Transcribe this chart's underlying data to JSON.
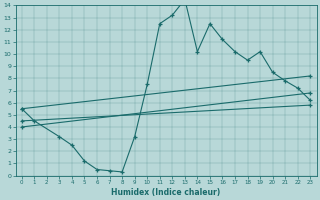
{
  "xlabel": "Humidex (Indice chaleur)",
  "bg_color": "#b8d8d8",
  "line_color": "#1a6b6b",
  "xlim": [
    -0.5,
    23.5
  ],
  "ylim": [
    0,
    14
  ],
  "xticks": [
    0,
    1,
    2,
    3,
    4,
    5,
    6,
    7,
    8,
    9,
    10,
    11,
    12,
    13,
    14,
    15,
    16,
    17,
    18,
    19,
    20,
    21,
    22,
    23
  ],
  "yticks": [
    0,
    1,
    2,
    3,
    4,
    5,
    6,
    7,
    8,
    9,
    10,
    11,
    12,
    13,
    14
  ],
  "line1_x": [
    0,
    1,
    3,
    4,
    5,
    6,
    7,
    8,
    9,
    10,
    11,
    12,
    13,
    14,
    15,
    16,
    17,
    18,
    19,
    20,
    21,
    22,
    23
  ],
  "line1_y": [
    5.5,
    4.5,
    3.2,
    2.5,
    1.2,
    0.5,
    0.4,
    0.3,
    3.2,
    7.5,
    12.5,
    13.2,
    14.5,
    10.2,
    12.5,
    11.2,
    10.2,
    9.5,
    10.2,
    8.5,
    7.8,
    7.2,
    6.2
  ],
  "line2_x": [
    0,
    23
  ],
  "line2_y": [
    5.5,
    8.2
  ],
  "line3_x": [
    0,
    23
  ],
  "line3_y": [
    4.0,
    6.8
  ],
  "line4_x": [
    0,
    23
  ],
  "line4_y": [
    4.5,
    5.8
  ]
}
